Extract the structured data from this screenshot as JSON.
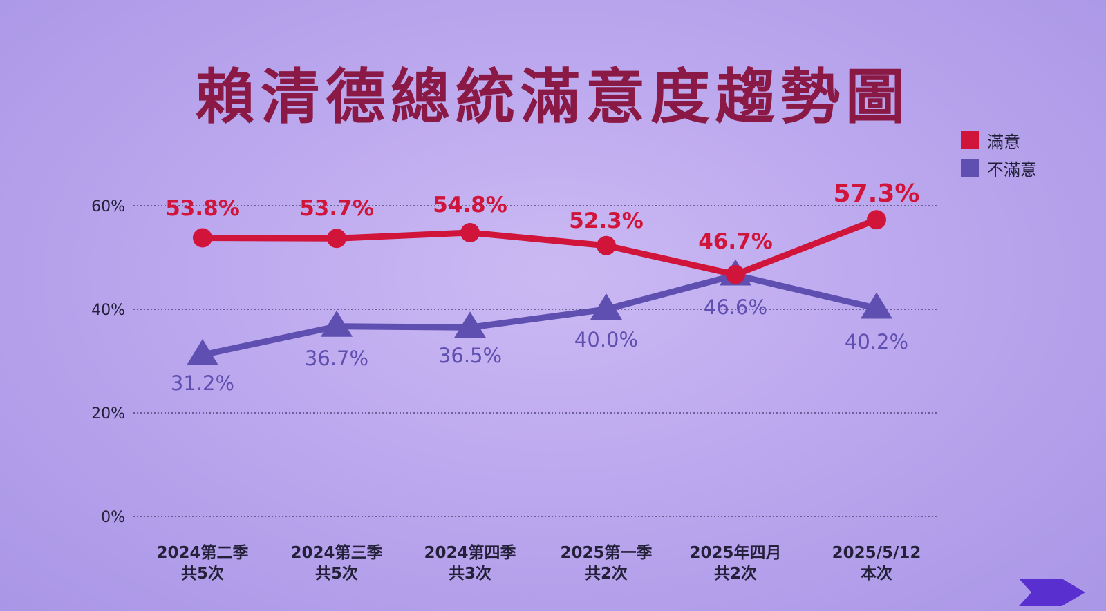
{
  "chart_data": {
    "type": "line",
    "title": "賴清德總統滿意度趨勢圖",
    "categories": [
      [
        "2024第二季",
        "共5次"
      ],
      [
        "2024第三季",
        "共5次"
      ],
      [
        "2024第四季",
        "共3次"
      ],
      [
        "2025第一季",
        "共2次"
      ],
      [
        "2025年四月",
        "共2次"
      ],
      [
        "2025/5/12",
        "本次"
      ]
    ],
    "series": [
      {
        "name": "滿意",
        "color": "#d0143a",
        "marker": "circle",
        "values": [
          53.8,
          53.7,
          54.8,
          52.3,
          46.7,
          57.3
        ]
      },
      {
        "name": "不滿意",
        "color": "#5e4fb0",
        "marker": "triangle",
        "values": [
          31.2,
          36.7,
          36.5,
          40.0,
          46.6,
          40.2
        ]
      }
    ],
    "data_labels": {
      "滿意": [
        "53.8%",
        "53.7%",
        "54.8%",
        "52.3%",
        "46.7%",
        "57.3%"
      ],
      "不滿意": [
        "31.2%",
        "36.7%",
        "36.5%",
        "40.0%",
        "46.6%",
        "40.2%"
      ]
    },
    "yticks": [
      0,
      20,
      40,
      60
    ],
    "ytick_labels": [
      "0%",
      "20%",
      "40%",
      "60%"
    ],
    "ylim": [
      0,
      60
    ],
    "grid": true,
    "legend_position": "top-right"
  }
}
